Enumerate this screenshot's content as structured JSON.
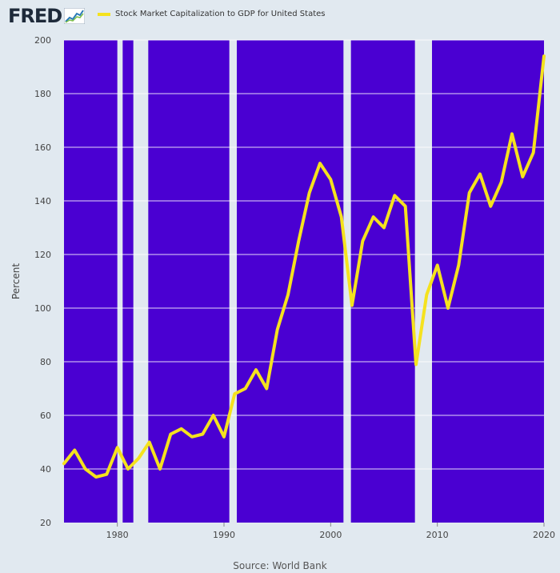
{
  "logo": {
    "text": "FRED"
  },
  "colors": {
    "plot_bg": "#4a00d2",
    "recession": "#e1e9f0",
    "line": "#f5e21e",
    "grid": "#ffffff"
  },
  "source": "Source: World Bank",
  "chart_data": {
    "type": "line",
    "title": "",
    "xlabel": "",
    "ylabel": "Percent",
    "xlim": [
      1975,
      2020
    ],
    "ylim": [
      20,
      200
    ],
    "yticks": [
      20,
      40,
      60,
      80,
      100,
      120,
      140,
      160,
      180,
      200
    ],
    "xticks": [
      1980,
      1990,
      2000,
      2010,
      2020
    ],
    "legend_position": "top-left",
    "grid": true,
    "recessions": [
      [
        1980.0,
        1980.5
      ],
      [
        1981.5,
        1982.9
      ],
      [
        1990.5,
        1991.2
      ],
      [
        2001.2,
        2001.9
      ],
      [
        2007.9,
        2009.5
      ]
    ],
    "series": [
      {
        "name": "Stock Market Capitalization to GDP for United States",
        "color": "#f5e21e",
        "x": [
          1975,
          1976,
          1977,
          1978,
          1979,
          1980,
          1981,
          1982,
          1983,
          1984,
          1985,
          1986,
          1987,
          1988,
          1989,
          1990,
          1991,
          1992,
          1993,
          1994,
          1995,
          1996,
          1997,
          1998,
          1999,
          2000,
          2001,
          2002,
          2003,
          2004,
          2005,
          2006,
          2007,
          2008,
          2009,
          2010,
          2011,
          2012,
          2013,
          2014,
          2015,
          2016,
          2017,
          2018,
          2019,
          2020
        ],
        "y": [
          42,
          47,
          40,
          37,
          38,
          48,
          40,
          44,
          50,
          40,
          53,
          55,
          52,
          53,
          60,
          52,
          68,
          70,
          77,
          70,
          92,
          105,
          125,
          143,
          154,
          148,
          134,
          101,
          125,
          134,
          130,
          142,
          138,
          79,
          105,
          116,
          100,
          116,
          143,
          150,
          138,
          147,
          165,
          149,
          158,
          194
        ]
      }
    ]
  }
}
